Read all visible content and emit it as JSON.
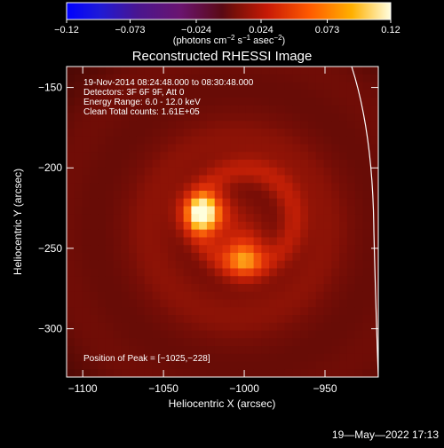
{
  "chart_data": {
    "type": "heatmap",
    "title": "Reconstructed RHESSI Image",
    "xlabel": "Heliocentric X (arcsec)",
    "ylabel": "Heliocentric Y (arcsec)",
    "xlim": [
      -1110,
      -917
    ],
    "ylim": [
      -330,
      -137
    ],
    "x_ticks": [
      {
        "value": -1100,
        "label": "−1100"
      },
      {
        "value": -1050,
        "label": "−1050"
      },
      {
        "value": -1000,
        "label": "−1000"
      },
      {
        "value": -950,
        "label": "−950"
      }
    ],
    "y_ticks": [
      {
        "value": -150,
        "label": "−150"
      },
      {
        "value": -200,
        "label": "−200"
      },
      {
        "value": -250,
        "label": "−250"
      },
      {
        "value": -300,
        "label": "−300"
      }
    ],
    "colorbar": {
      "colormap": "hot",
      "range": [
        -0.12,
        0.12
      ],
      "ticks": [
        {
          "value": -0.12,
          "label": "−0.12"
        },
        {
          "value": -0.073,
          "label": "−0.073"
        },
        {
          "value": -0.024,
          "label": "−0.024"
        },
        {
          "value": 0.024,
          "label": "0.024"
        },
        {
          "value": 0.073,
          "label": "0.073"
        },
        {
          "value": 0.12,
          "label": "0.12"
        }
      ],
      "units_main": "(photons cm",
      "units_exp1": "−2",
      "units_mid": " s",
      "units_exp2": "−1",
      "units_end": " asec",
      "units_exp3": "−2",
      "units_close": ")"
    },
    "info_lines": [
      "19-Nov-2014 08:24:48.000 to 08:30:48.000",
      "Detectors: 3F 6F 9F, Att 0",
      "Energy Range: 6.0 - 12.0 keV",
      "Clean    Total counts: 1.61E+05"
    ],
    "peak_text": "Position of Peak = [−1025,−228]",
    "sources": [
      {
        "x": -1025,
        "y": -228,
        "peak": 0.12
      },
      {
        "x": -1000,
        "y": -255,
        "peak": 0.095
      }
    ],
    "background_level": 0.058,
    "timestamp": "19—May—2022 17:13"
  }
}
